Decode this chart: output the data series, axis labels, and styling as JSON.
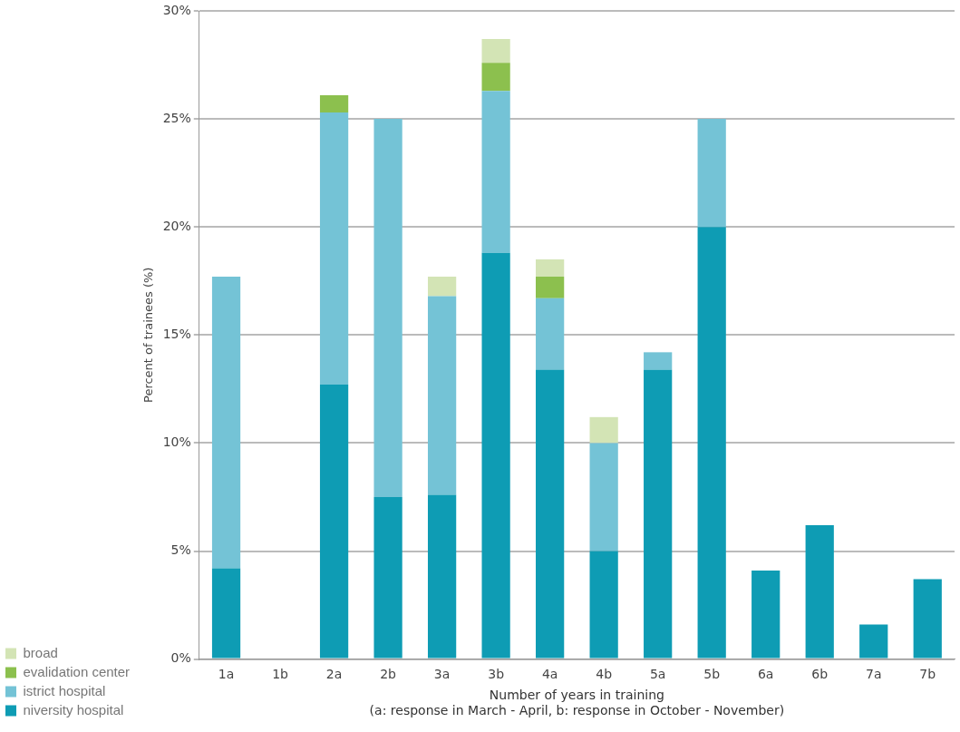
{
  "chart_data": {
    "type": "bar",
    "stacked": true,
    "xlabel": "Number of years in training\n(a: response in March - April, b: response in October - November)",
    "ylabel": "Percent of trainees (%)",
    "categories": [
      "1a",
      "1b",
      "2a",
      "2b",
      "3a",
      "3b",
      "4a",
      "4b",
      "5a",
      "5b",
      "6a",
      "6b",
      "7a",
      "7b"
    ],
    "series": [
      {
        "name": "niversity hospital",
        "color": "#0e9cb4",
        "values": [
          4.2,
          0,
          12.7,
          7.5,
          7.6,
          18.8,
          13.4,
          5.0,
          13.4,
          20.0,
          4.1,
          6.2,
          1.6,
          3.7
        ]
      },
      {
        "name": "istrict hospital",
        "color": "#74c3d6",
        "values": [
          13.5,
          0,
          12.6,
          17.5,
          9.2,
          7.5,
          3.3,
          5.0,
          0.8,
          5.0,
          0,
          0,
          0,
          0
        ]
      },
      {
        "name": "evalidation center",
        "color": "#8cc04e",
        "values": [
          0,
          0,
          0.8,
          0,
          0,
          1.3,
          1.0,
          0,
          0,
          0,
          0,
          0,
          0,
          0
        ]
      },
      {
        "name": "broad",
        "color": "#d3e4b5",
        "values": [
          0,
          0,
          0,
          0,
          0.9,
          1.1,
          0.8,
          1.2,
          0,
          0,
          0,
          0,
          0,
          0
        ]
      }
    ],
    "ylim": [
      0,
      30
    ],
    "yticks": [
      {
        "value": 0,
        "label": "0%"
      },
      {
        "value": 5,
        "label": "5%"
      },
      {
        "value": 10,
        "label": "10%"
      },
      {
        "value": 15,
        "label": "15%"
      },
      {
        "value": 20,
        "label": "20%"
      },
      {
        "value": 25,
        "label": "25%"
      },
      {
        "value": 30,
        "label": "30%"
      }
    ],
    "grid": "y",
    "legend": "bottom left"
  }
}
